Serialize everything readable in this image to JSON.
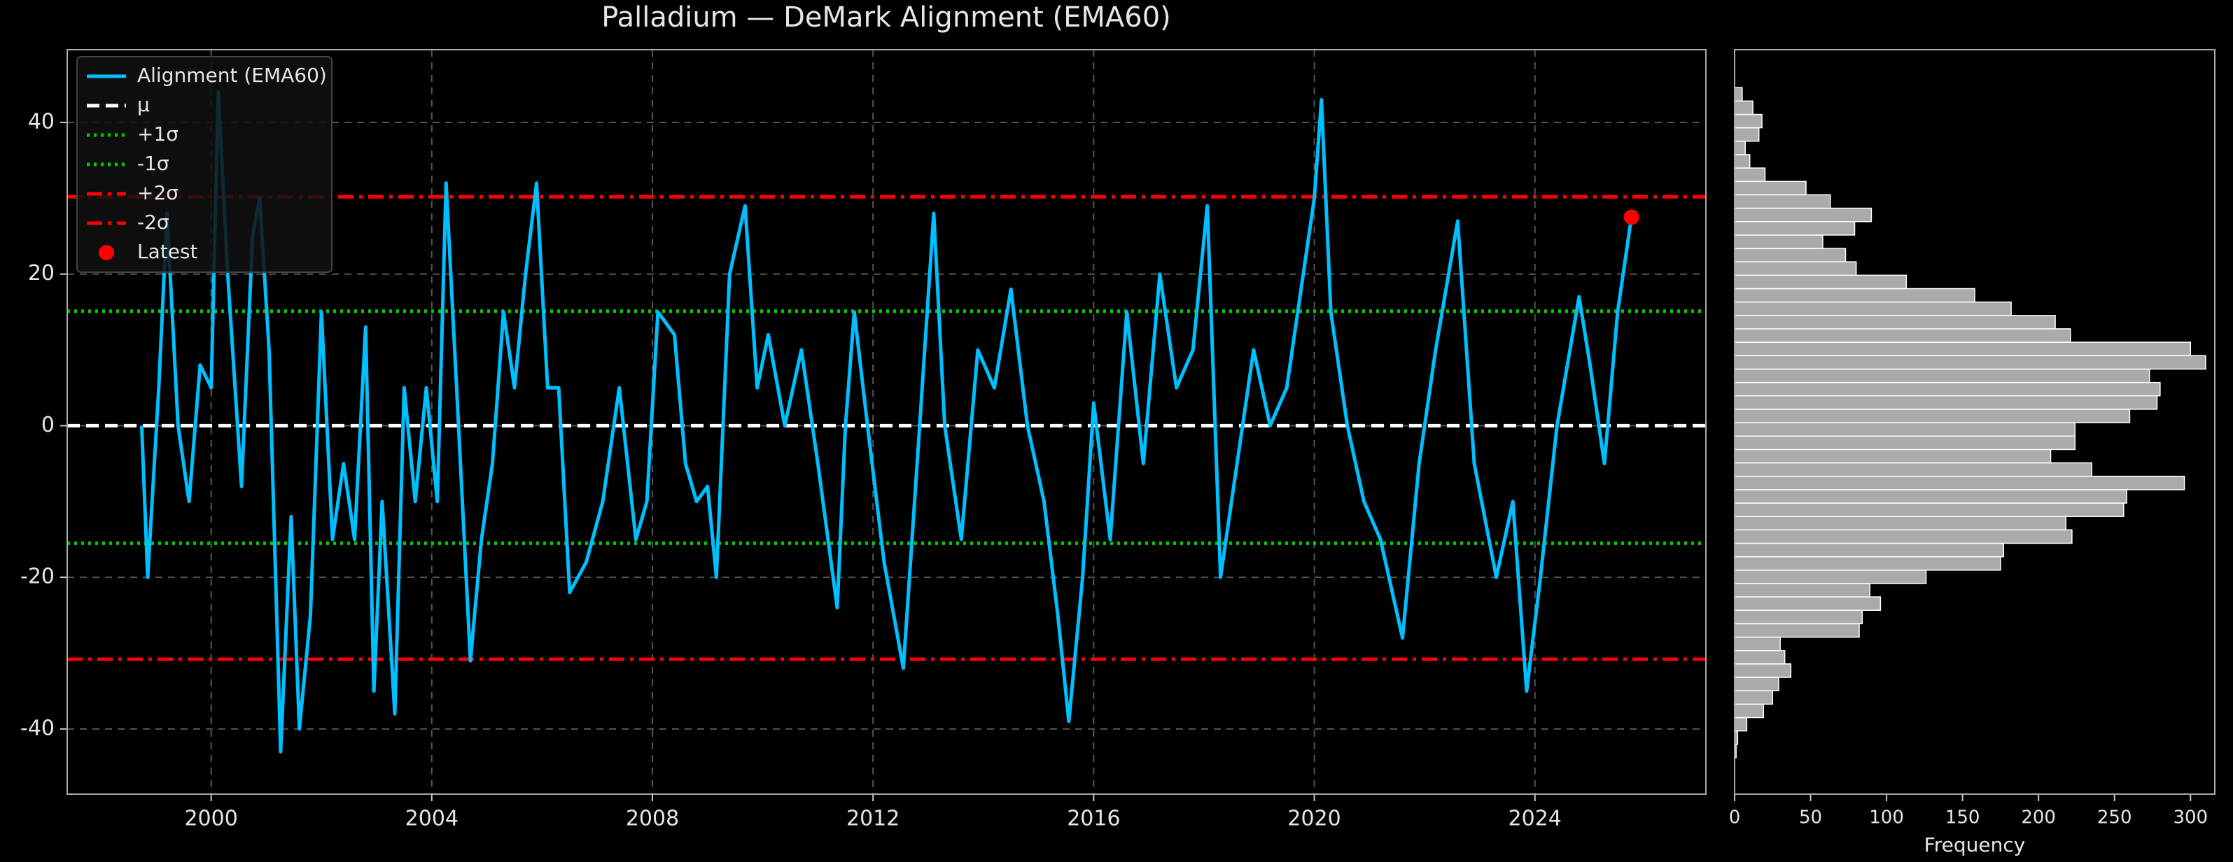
{
  "chart_data": [
    {
      "type": "line",
      "title": "Palladium — DeMark Alignment (EMA60)",
      "xlim": [
        1997.39,
        2027.1
      ],
      "ylim": [
        -48.6,
        49.6
      ],
      "xticks": [
        2000,
        2004,
        2008,
        2012,
        2016,
        2020,
        2024
      ],
      "yticks": [
        -40,
        -20,
        0,
        20,
        40
      ],
      "grid": true,
      "legend": "upper left",
      "x": [
        1998.74,
        1998.85,
        1999.05,
        1999.2,
        1999.4,
        1999.6,
        1999.8,
        2000.0,
        2000.13,
        2000.3,
        2000.55,
        2000.75,
        2000.88,
        2001.05,
        2001.26,
        2001.45,
        2001.6,
        2001.8,
        2002.0,
        2002.2,
        2002.4,
        2002.6,
        2002.8,
        2002.95,
        2003.1,
        2003.33,
        2003.5,
        2003.7,
        2003.9,
        2004.1,
        2004.26,
        2004.45,
        2004.7,
        2004.9,
        2005.1,
        2005.3,
        2005.5,
        2005.7,
        2005.9,
        2006.1,
        2006.3,
        2006.5,
        2006.8,
        2007.1,
        2007.4,
        2007.7,
        2007.9,
        2008.1,
        2008.4,
        2008.6,
        2008.8,
        2009.0,
        2009.16,
        2009.4,
        2009.68,
        2009.9,
        2010.1,
        2010.4,
        2010.7,
        2011.0,
        2011.35,
        2011.5,
        2011.66,
        2011.9,
        2012.2,
        2012.55,
        2012.8,
        2013.1,
        2013.3,
        2013.6,
        2013.9,
        2014.2,
        2014.5,
        2014.8,
        2015.1,
        2015.35,
        2015.55,
        2015.8,
        2016.0,
        2016.3,
        2016.6,
        2016.9,
        2017.2,
        2017.5,
        2017.8,
        2018.06,
        2018.3,
        2018.6,
        2018.9,
        2019.2,
        2019.5,
        2019.8,
        2020.0,
        2020.13,
        2020.3,
        2020.6,
        2020.9,
        2021.2,
        2021.6,
        2021.9,
        2022.2,
        2022.6,
        2022.9,
        2023.3,
        2023.6,
        2023.85,
        2024.1,
        2024.4,
        2024.8,
        2025.0,
        2025.26,
        2025.5,
        2025.75
      ],
      "series": [
        {
          "name": "Alignment (EMA60)",
          "color": "#00bfff",
          "values": [
            0,
            -20,
            5,
            28,
            0,
            -10,
            8,
            5,
            44,
            20,
            -8,
            25,
            30,
            10,
            -43,
            -12,
            -40,
            -25,
            15,
            -15,
            -5,
            -15,
            13,
            -35,
            -10,
            -38,
            5,
            -10,
            5,
            -10,
            32,
            5,
            -31,
            -15,
            -5,
            15,
            5,
            20,
            32,
            5,
            5,
            -22,
            -18,
            -10,
            5,
            -15,
            -10,
            15,
            12,
            -5,
            -10,
            -8,
            -20,
            20,
            29,
            5,
            12,
            0,
            10,
            -5,
            -24,
            0,
            15,
            0,
            -18,
            -32,
            -5,
            28,
            0,
            -15,
            10,
            5,
            18,
            0,
            -10,
            -25,
            -39,
            -20,
            3,
            -15,
            15,
            -5,
            20,
            5,
            10,
            29,
            -20,
            -5,
            10,
            0,
            5,
            20,
            30,
            43,
            15,
            0,
            -10,
            -15,
            -28,
            -5,
            10,
            27,
            -5,
            -20,
            -10,
            -35,
            -20,
            0,
            17,
            8,
            -5,
            15,
            27.5
          ]
        }
      ],
      "reference_lines": [
        {
          "name": "μ",
          "value": 0,
          "color": "#ffffff",
          "style": "dashed"
        },
        {
          "name": "+1σ",
          "value": 15.1,
          "color": "#00cc00",
          "style": "dotted"
        },
        {
          "name": "-1σ",
          "value": -15.5,
          "color": "#00cc00",
          "style": "dotted"
        },
        {
          "name": "+2σ",
          "value": 30.2,
          "color": "#ff0000",
          "style": "dashdot"
        },
        {
          "name": "-2σ",
          "value": -30.8,
          "color": "#ff0000",
          "style": "dashdot"
        }
      ],
      "latest": {
        "name": "Latest",
        "x": 2025.75,
        "value": 27.5,
        "color": "#ff0000"
      }
    },
    {
      "type": "histogram",
      "orientation": "horizontal",
      "xlabel": "Frequency",
      "color": "#aaaaaa",
      "xlim": [
        0,
        316
      ],
      "ylim": [
        -48.6,
        49.6
      ],
      "xticks": [
        0,
        50,
        100,
        150,
        200,
        250,
        300
      ],
      "bins": [
        -43.8,
        -42.03,
        -40.26,
        -38.5,
        -36.73,
        -34.96,
        -33.19,
        -31.42,
        -29.66,
        -27.89,
        -26.12,
        -24.35,
        -22.58,
        -20.82,
        -19.05,
        -17.28,
        -15.51,
        -13.74,
        -11.98,
        -10.21,
        -8.44,
        -6.67,
        -4.9,
        -3.14,
        -1.37,
        0.4,
        2.17,
        3.94,
        5.7,
        7.47,
        9.24,
        11.01,
        12.78,
        14.54,
        16.31,
        18.08,
        19.85,
        21.62,
        23.38,
        25.15,
        26.92,
        28.69,
        30.46,
        32.22,
        33.99,
        35.76,
        37.53,
        39.3,
        41.06,
        42.83,
        44.6
      ],
      "counts": [
        1,
        2,
        8,
        19,
        25,
        29,
        37,
        33,
        30,
        82,
        84,
        96,
        89,
        126,
        175,
        177,
        222,
        218,
        256,
        258,
        296,
        235,
        208,
        224,
        224,
        260,
        278,
        280,
        273,
        310,
        300,
        221,
        211,
        182,
        158,
        113,
        80,
        73,
        58,
        79,
        90,
        63,
        47,
        20,
        10,
        7,
        16,
        18,
        12,
        5
      ]
    }
  ]
}
